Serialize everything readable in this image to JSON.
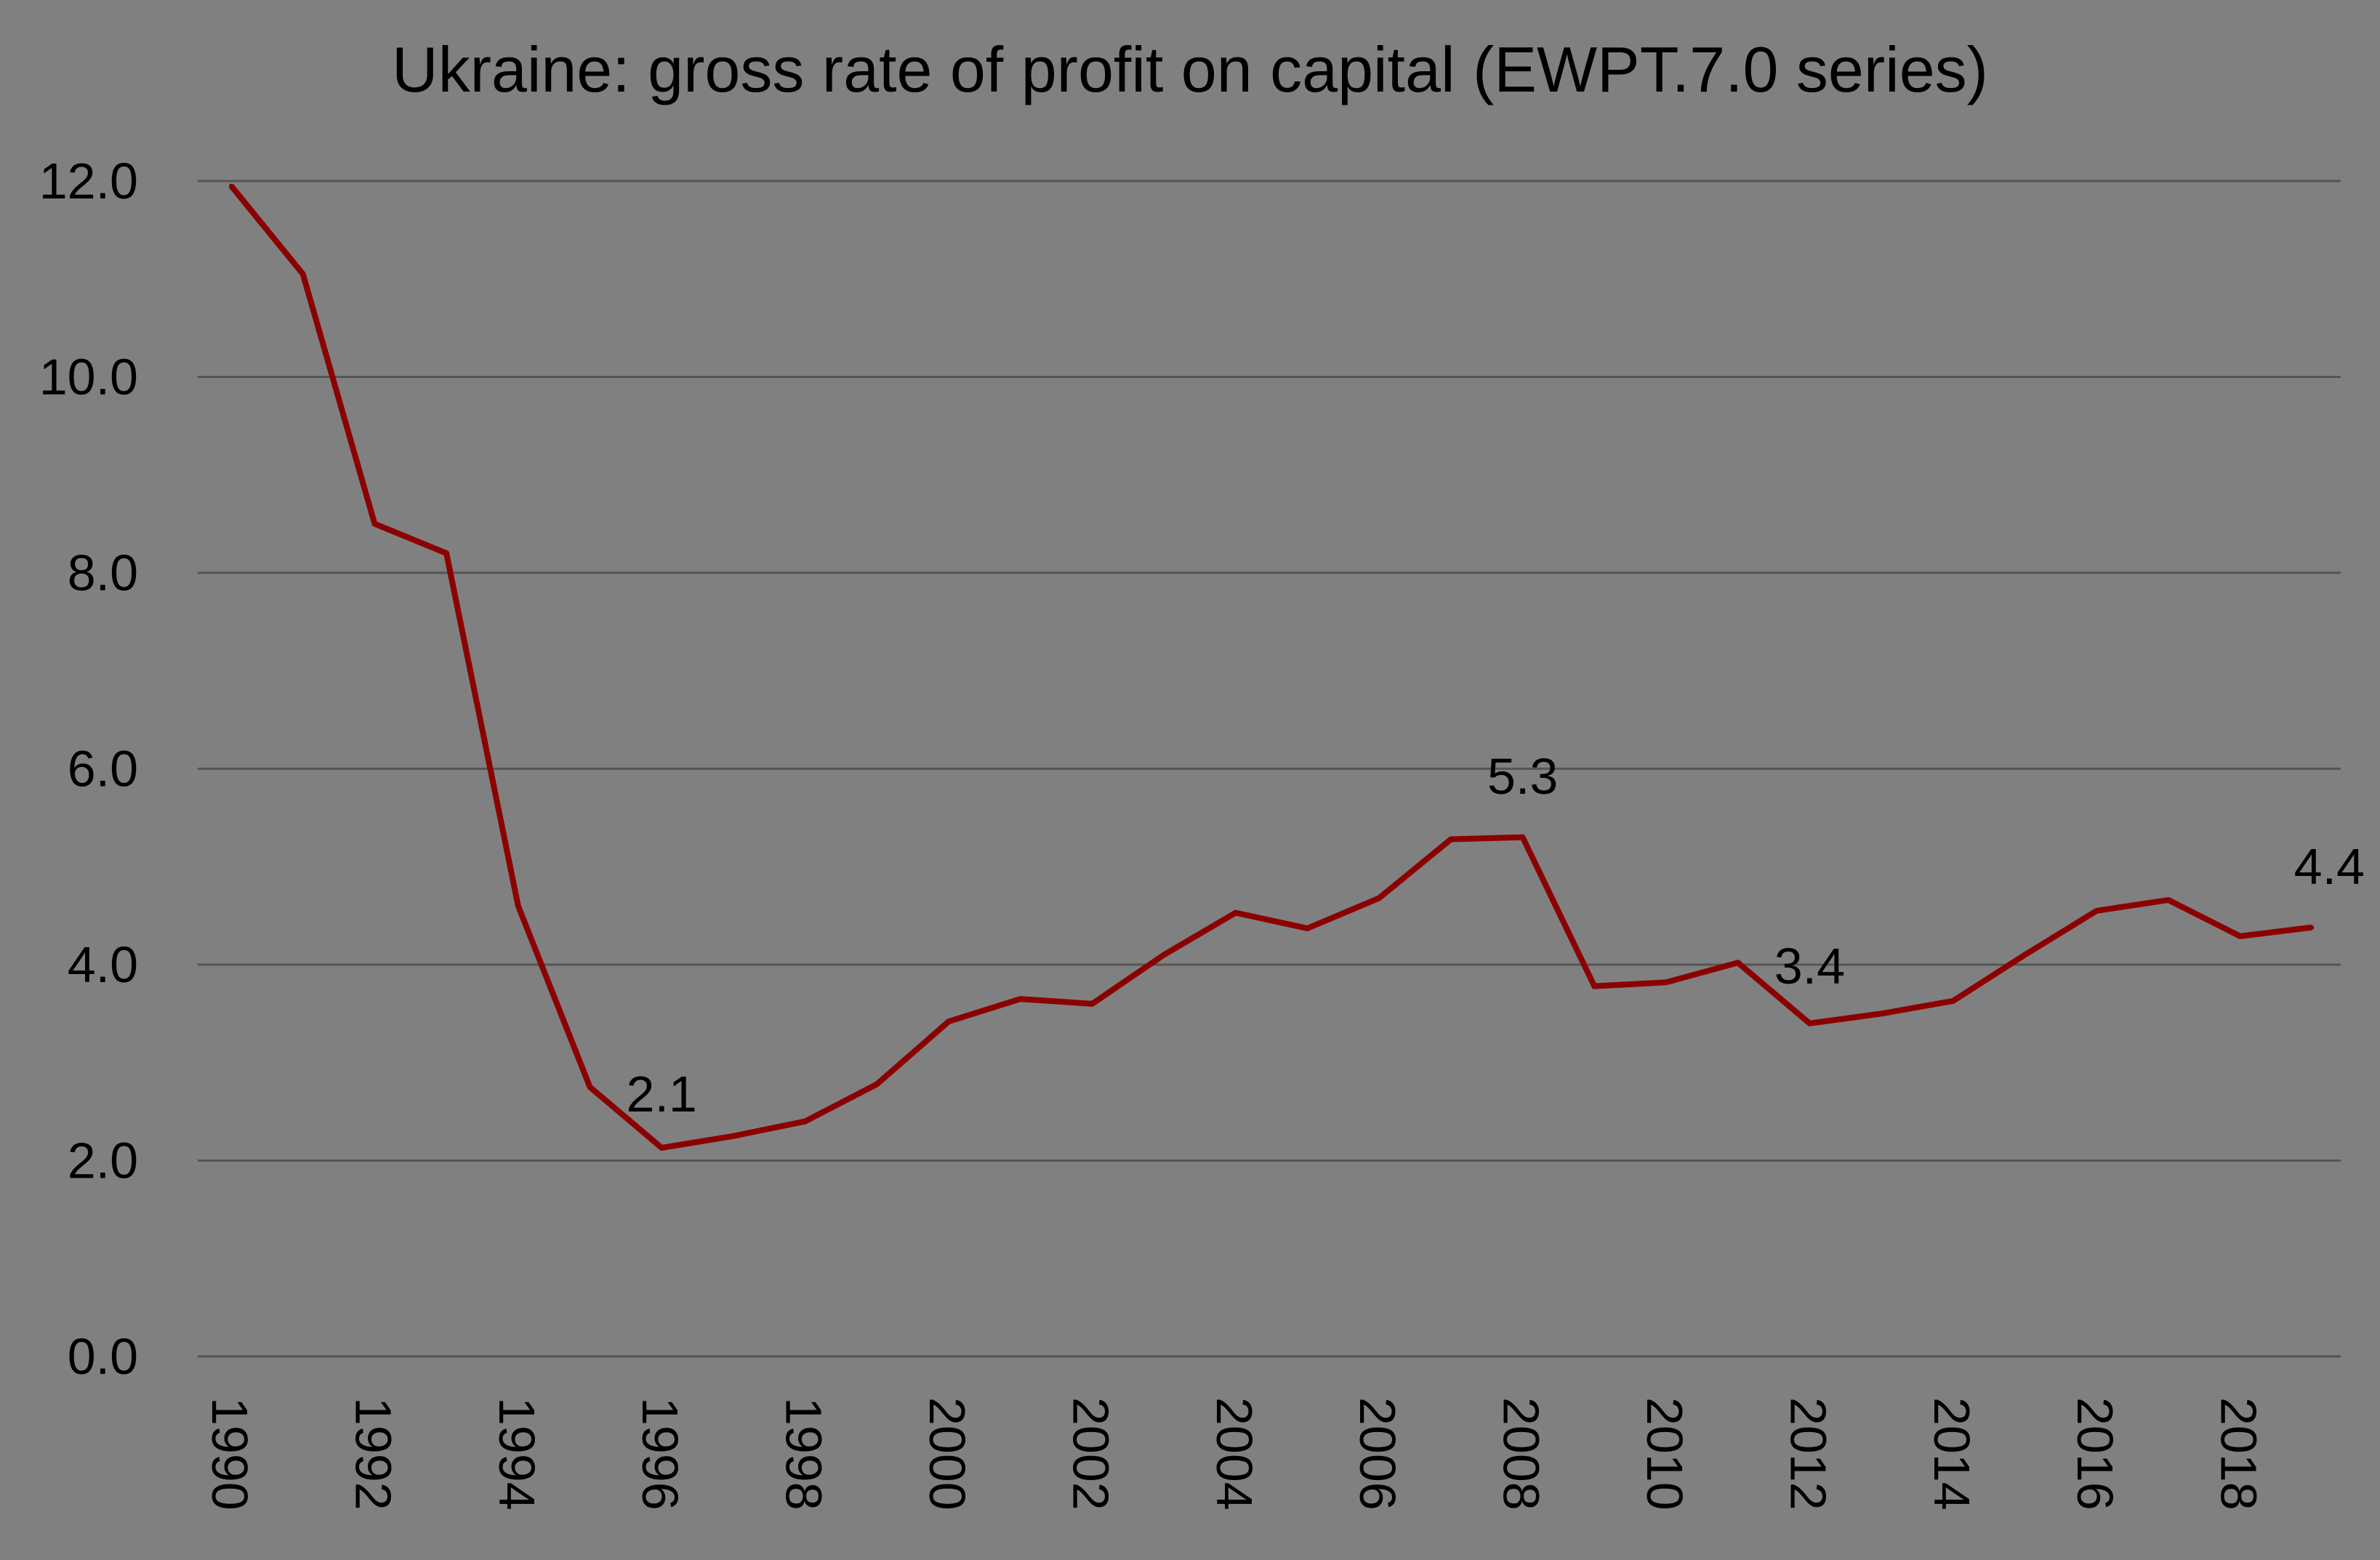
{
  "chart_data": {
    "type": "line",
    "title": "Ukraine: gross rate of profit on capital  (EWPT.7.0 series)",
    "xlabel": "",
    "ylabel": "",
    "x": [
      1990,
      1991,
      1992,
      1993,
      1994,
      1995,
      1996,
      1997,
      1998,
      1999,
      2000,
      2001,
      2002,
      2003,
      2004,
      2005,
      2006,
      2007,
      2008,
      2009,
      2010,
      2011,
      2012,
      2013,
      2014,
      2015,
      2016,
      2017,
      2018,
      2019
    ],
    "series": [
      {
        "values": [
          11.95,
          11.05,
          8.5,
          8.2,
          4.6,
          2.75,
          2.13,
          2.25,
          2.4,
          2.78,
          3.42,
          3.65,
          3.6,
          4.1,
          4.53,
          4.37,
          4.68,
          5.28,
          5.3,
          3.78,
          3.82,
          4.02,
          3.4,
          3.5,
          3.63,
          4.1,
          4.55,
          4.66,
          4.29,
          4.38
        ],
        "color": "#8b0000"
      }
    ],
    "ylim": [
      0,
      12
    ],
    "yticks": [
      "0.0",
      "2.0",
      "4.0",
      "6.0",
      "8.0",
      "10.0",
      "12.0"
    ],
    "xticks": [
      "1990",
      "1992",
      "1994",
      "1996",
      "1998",
      "2000",
      "2002",
      "2004",
      "2006",
      "2008",
      "2010",
      "2012",
      "2014",
      "2016",
      "2018"
    ],
    "annotations": [
      {
        "x": 1996,
        "text": "2.1"
      },
      {
        "x": 2008,
        "text": "5.3"
      },
      {
        "x": 2012,
        "text": "3.4"
      },
      {
        "x": 2019,
        "text": "4.4"
      }
    ],
    "grid": true,
    "legend": "none",
    "background": "#808080",
    "gridline_color": "#555555"
  }
}
